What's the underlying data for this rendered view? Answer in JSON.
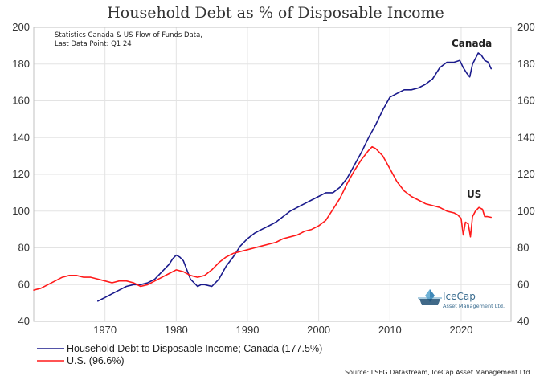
{
  "chart_data": {
    "type": "line",
    "title": "Household Debt as % of Disposable Income",
    "note_lines": [
      "Statistics Canada & US Flow of Funds Data,",
      "Last Data Point: Q1 24"
    ],
    "xlim": [
      1960,
      2027
    ],
    "ylim": [
      40,
      200
    ],
    "x_ticks": [
      1970,
      1980,
      1990,
      2000,
      2010,
      2020
    ],
    "x_tick_labels": [
      "1970",
      "1980",
      "1990",
      "2000",
      "2010",
      "2020"
    ],
    "y_ticks": [
      40,
      60,
      80,
      100,
      120,
      140,
      160,
      180,
      200
    ],
    "y_tick_labels": [
      "40",
      "60",
      "80",
      "100",
      "120",
      "140",
      "160",
      "180",
      "200"
    ],
    "series": [
      {
        "name": "Household Debt to Disposable Income; Canada (177.5%)",
        "label": "Canada",
        "color": "#1a1a8c",
        "points": [
          [
            1969.0,
            51
          ],
          [
            1970.0,
            53
          ],
          [
            1971.0,
            55
          ],
          [
            1972.0,
            57
          ],
          [
            1973.0,
            59
          ],
          [
            1974.0,
            60
          ],
          [
            1975.0,
            60
          ],
          [
            1976.0,
            61
          ],
          [
            1977.0,
            63
          ],
          [
            1978.0,
            67
          ],
          [
            1979.0,
            71
          ],
          [
            1979.5,
            74
          ],
          [
            1980.0,
            76
          ],
          [
            1980.5,
            75
          ],
          [
            1981.0,
            73
          ],
          [
            1981.5,
            68
          ],
          [
            1982.0,
            63
          ],
          [
            1982.5,
            61
          ],
          [
            1983.0,
            59
          ],
          [
            1983.5,
            60
          ],
          [
            1984.0,
            60
          ],
          [
            1985.0,
            59
          ],
          [
            1986.0,
            63
          ],
          [
            1987.0,
            70
          ],
          [
            1988.0,
            75
          ],
          [
            1989.0,
            81
          ],
          [
            1990.0,
            85
          ],
          [
            1991.0,
            88
          ],
          [
            1992.0,
            90
          ],
          [
            1993.0,
            92
          ],
          [
            1994.0,
            94
          ],
          [
            1995.0,
            97
          ],
          [
            1996.0,
            100
          ],
          [
            1997.0,
            102
          ],
          [
            1998.0,
            104
          ],
          [
            1999.0,
            106
          ],
          [
            2000.0,
            108
          ],
          [
            2001.0,
            110
          ],
          [
            2002.0,
            110
          ],
          [
            2003.0,
            113
          ],
          [
            2004.0,
            118
          ],
          [
            2005.0,
            125
          ],
          [
            2006.0,
            132
          ],
          [
            2007.0,
            140
          ],
          [
            2008.0,
            147
          ],
          [
            2009.0,
            155
          ],
          [
            2010.0,
            162
          ],
          [
            2011.0,
            164
          ],
          [
            2012.0,
            166
          ],
          [
            2013.0,
            166
          ],
          [
            2014.0,
            167
          ],
          [
            2015.0,
            169
          ],
          [
            2016.0,
            172
          ],
          [
            2017.0,
            178
          ],
          [
            2018.0,
            181
          ],
          [
            2019.0,
            181
          ],
          [
            2019.8,
            182
          ],
          [
            2020.3,
            178
          ],
          [
            2020.8,
            175
          ],
          [
            2021.2,
            173
          ],
          [
            2021.6,
            180
          ],
          [
            2022.0,
            183
          ],
          [
            2022.4,
            186
          ],
          [
            2022.8,
            185
          ],
          [
            2023.3,
            182
          ],
          [
            2023.8,
            181
          ],
          [
            2024.2,
            177.5
          ]
        ]
      },
      {
        "name": "U.S. (96.6%)",
        "label": "US",
        "color": "#ff1a1a",
        "points": [
          [
            1960.0,
            57
          ],
          [
            1961.0,
            58
          ],
          [
            1962.0,
            60
          ],
          [
            1963.0,
            62
          ],
          [
            1964.0,
            64
          ],
          [
            1965.0,
            65
          ],
          [
            1966.0,
            65
          ],
          [
            1967.0,
            64
          ],
          [
            1968.0,
            64
          ],
          [
            1969.0,
            63
          ],
          [
            1970.0,
            62
          ],
          [
            1971.0,
            61
          ],
          [
            1972.0,
            62
          ],
          [
            1973.0,
            62
          ],
          [
            1974.0,
            61
          ],
          [
            1975.0,
            59
          ],
          [
            1976.0,
            60
          ],
          [
            1977.0,
            62
          ],
          [
            1978.0,
            64
          ],
          [
            1979.0,
            66
          ],
          [
            1980.0,
            68
          ],
          [
            1981.0,
            67
          ],
          [
            1982.0,
            65
          ],
          [
            1983.0,
            64
          ],
          [
            1984.0,
            65
          ],
          [
            1985.0,
            68
          ],
          [
            1986.0,
            72
          ],
          [
            1987.0,
            75
          ],
          [
            1988.0,
            77
          ],
          [
            1989.0,
            78
          ],
          [
            1990.0,
            79
          ],
          [
            1991.0,
            80
          ],
          [
            1992.0,
            81
          ],
          [
            1993.0,
            82
          ],
          [
            1994.0,
            83
          ],
          [
            1995.0,
            85
          ],
          [
            1996.0,
            86
          ],
          [
            1997.0,
            87
          ],
          [
            1998.0,
            89
          ],
          [
            1999.0,
            90
          ],
          [
            2000.0,
            92
          ],
          [
            2001.0,
            95
          ],
          [
            2002.0,
            101
          ],
          [
            2003.0,
            107
          ],
          [
            2004.0,
            115
          ],
          [
            2005.0,
            122
          ],
          [
            2006.0,
            128
          ],
          [
            2007.0,
            133
          ],
          [
            2007.5,
            135
          ],
          [
            2008.0,
            134
          ],
          [
            2009.0,
            130
          ],
          [
            2010.0,
            123
          ],
          [
            2011.0,
            116
          ],
          [
            2012.0,
            111
          ],
          [
            2013.0,
            108
          ],
          [
            2014.0,
            106
          ],
          [
            2015.0,
            104
          ],
          [
            2016.0,
            103
          ],
          [
            2017.0,
            102
          ],
          [
            2018.0,
            100
          ],
          [
            2019.0,
            99
          ],
          [
            2019.5,
            98
          ],
          [
            2020.0,
            96
          ],
          [
            2020.3,
            87
          ],
          [
            2020.6,
            94
          ],
          [
            2021.0,
            93
          ],
          [
            2021.3,
            86
          ],
          [
            2021.6,
            97
          ],
          [
            2022.0,
            100
          ],
          [
            2022.5,
            102
          ],
          [
            2023.0,
            101
          ],
          [
            2023.3,
            97
          ],
          [
            2023.7,
            97
          ],
          [
            2024.2,
            96.6
          ]
        ]
      }
    ]
  },
  "logo": {
    "name": "IceCap",
    "subtitle": "Asset Management Ltd."
  },
  "source": "Source: LSEG Datastream, IceCap Asset Management Ltd."
}
